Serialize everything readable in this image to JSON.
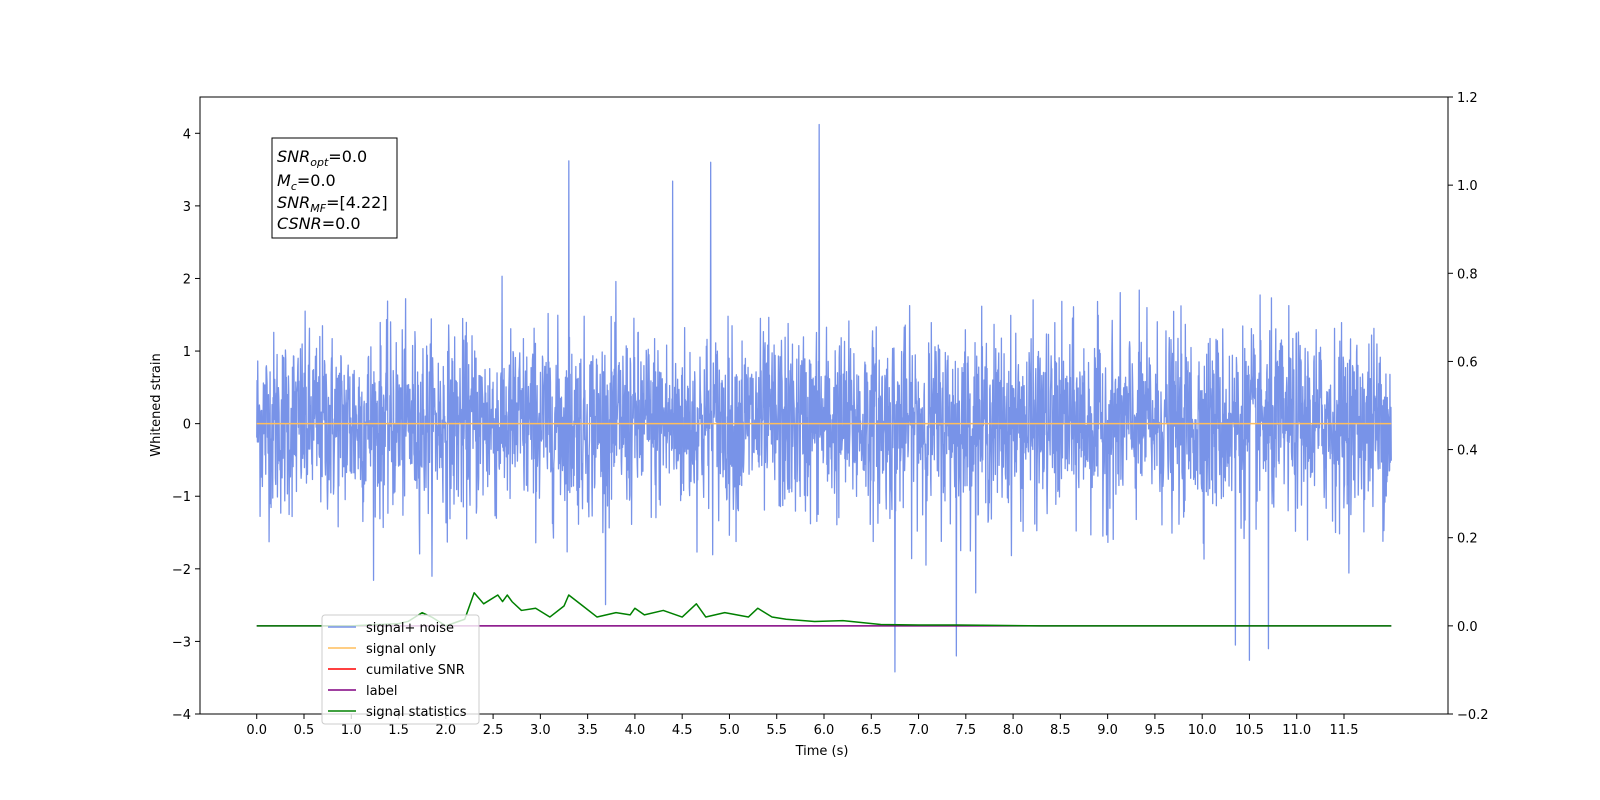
{
  "chart_data": {
    "type": "line",
    "xlabel": "Time (s)",
    "ylabel": "Whitened strain",
    "xlim": [
      -0.6,
      12.6
    ],
    "ylim": [
      -4,
      4.5
    ],
    "ylim_right": [
      -0.2,
      1.2
    ],
    "x_ticks": [
      "0.0",
      "0.5",
      "1.0",
      "1.5",
      "2.0",
      "2.5",
      "3.0",
      "3.5",
      "4.0",
      "4.5",
      "5.0",
      "5.5",
      "6.0",
      "6.5",
      "7.0",
      "7.5",
      "8.0",
      "8.5",
      "9.0",
      "9.5",
      "10.0",
      "10.5",
      "11.0",
      "11.5"
    ],
    "y_ticks_left": [
      "−4",
      "−3",
      "−2",
      "−1",
      "0",
      "1",
      "2",
      "3",
      "4"
    ],
    "y_ticks_right": [
      "−0.2",
      "0.0",
      "0.2",
      "0.4",
      "0.6",
      "0.8",
      "1.0",
      "1.2"
    ],
    "grid": false,
    "legend_position": "lower-left",
    "annotation": [
      {
        "base": "SNR",
        "sub": "opt",
        "value": "=0.0"
      },
      {
        "base": "M",
        "sub": "c",
        "value": "=0.0"
      },
      {
        "base": "SNR",
        "sub": "MF",
        "value": "=[4.22]"
      },
      {
        "base": "CSNR",
        "sub": "",
        "value": "=0.0"
      }
    ],
    "series": [
      {
        "name": "signal+ noise",
        "color": "#7893e8",
        "axis": "left",
        "style": "whitened noise, approx. gaussian, amplitude within about ±2.5 with spikes",
        "x_range": [
          0,
          12
        ],
        "notable_extrema": [
          {
            "x": 5.95,
            "y": 4.12
          },
          {
            "x": 3.3,
            "y": 3.62
          },
          {
            "x": 4.8,
            "y": 3.6
          },
          {
            "x": 4.4,
            "y": 3.34
          },
          {
            "x": 10.5,
            "y": -3.26
          },
          {
            "x": 6.75,
            "y": -3.42
          },
          {
            "x": 7.4,
            "y": -3.2
          },
          {
            "x": 10.7,
            "y": -3.1
          },
          {
            "x": 10.35,
            "y": -3.05
          }
        ]
      },
      {
        "name": "signal only",
        "color": "#ffbe5c",
        "axis": "left",
        "x": [
          0,
          12
        ],
        "y": [
          0,
          0
        ]
      },
      {
        "name": "cumilative SNR",
        "color": "#ff0000",
        "axis": "right",
        "x": [],
        "y": []
      },
      {
        "name": "label",
        "color": "#800080",
        "axis": "right",
        "x": [
          0,
          12
        ],
        "y": [
          0,
          0
        ]
      },
      {
        "name": "signal statistics",
        "color": "#008000",
        "axis": "right",
        "x": [
          0,
          0.5,
          1.0,
          1.5,
          1.6,
          1.75,
          1.85,
          2.0,
          2.2,
          2.3,
          2.4,
          2.55,
          2.6,
          2.65,
          2.7,
          2.8,
          2.95,
          3.1,
          3.25,
          3.3,
          3.45,
          3.6,
          3.8,
          3.95,
          4.0,
          4.1,
          4.3,
          4.5,
          4.65,
          4.75,
          4.95,
          5.2,
          5.3,
          5.45,
          5.6,
          5.9,
          6.2,
          6.6,
          7.0,
          7.4,
          7.8,
          8.3,
          12
        ],
        "y": [
          0.0,
          0.0,
          0.0,
          0.005,
          0.01,
          0.03,
          0.02,
          0.0,
          0.015,
          0.075,
          0.05,
          0.07,
          0.055,
          0.07,
          0.055,
          0.035,
          0.04,
          0.02,
          0.045,
          0.07,
          0.045,
          0.02,
          0.03,
          0.025,
          0.04,
          0.025,
          0.035,
          0.02,
          0.05,
          0.02,
          0.03,
          0.02,
          0.04,
          0.02,
          0.015,
          0.01,
          0.012,
          0.003,
          0.002,
          0.002,
          0.001,
          0.0,
          0.0
        ]
      }
    ]
  },
  "annotation_text": {
    "line1_base": "SNR",
    "line1_sub": "opt",
    "line1_val": "=0.0",
    "line2_base": "M",
    "line2_sub": "c",
    "line2_val": "=0.0",
    "line3_base": "SNR",
    "line3_sub": "MF",
    "line3_val": "=[4.22]",
    "line4_base": "CSNR",
    "line4_val": "=0.0"
  }
}
